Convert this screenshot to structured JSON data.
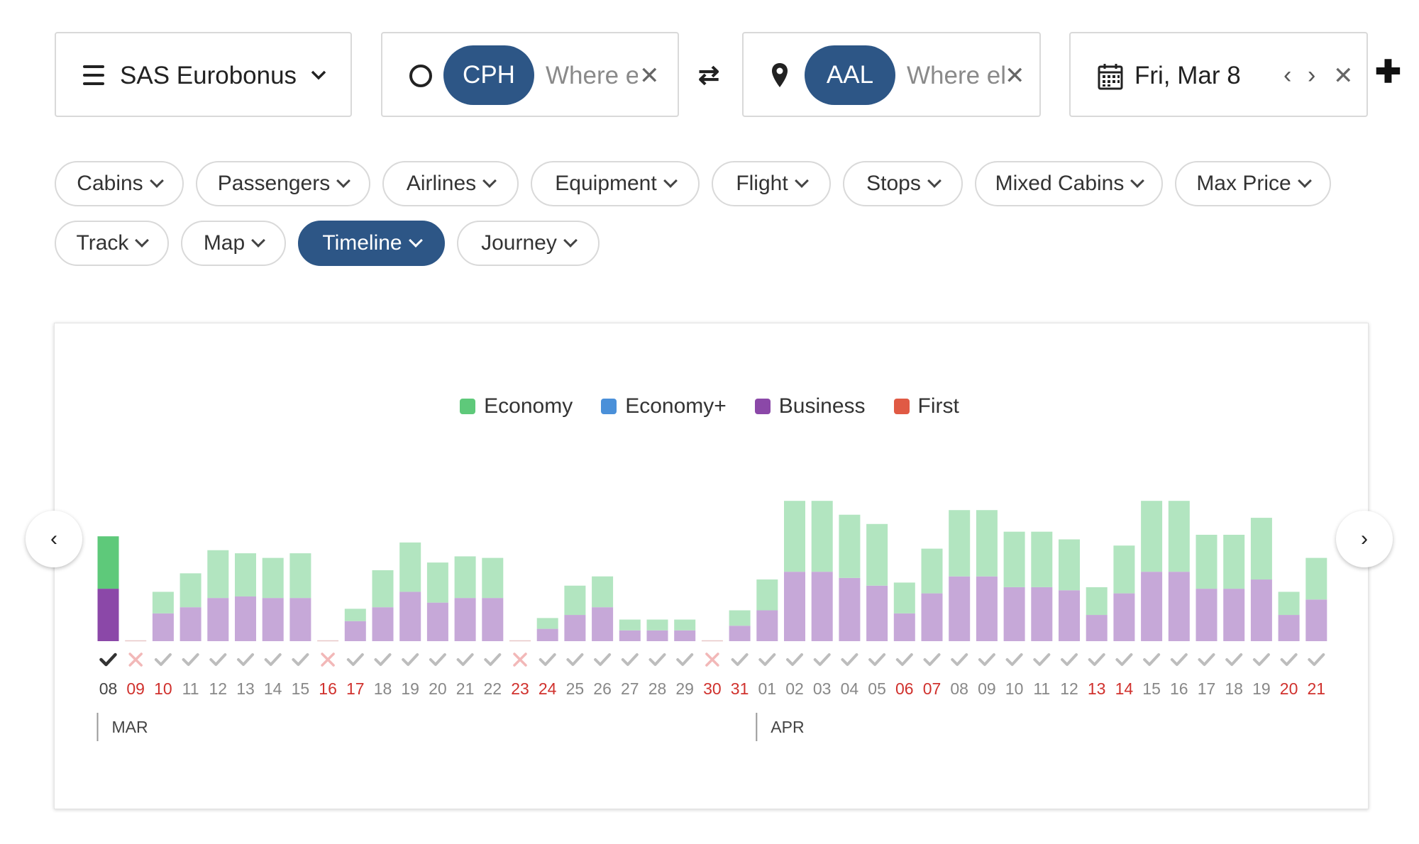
{
  "toolbar": {
    "program_label": "SAS Eurobonus",
    "origin": {
      "code": "CPH",
      "placeholder": "Where else?"
    },
    "destination": {
      "code": "AAL",
      "placeholder": "Where else?"
    },
    "date_label": "Fri, Mar 8"
  },
  "filters": [
    {
      "label": "Cabins",
      "active": false
    },
    {
      "label": "Passengers",
      "active": false
    },
    {
      "label": "Airlines",
      "active": false
    },
    {
      "label": "Equipment",
      "active": false
    },
    {
      "label": "Flight",
      "active": false
    },
    {
      "label": "Stops",
      "active": false
    },
    {
      "label": "Mixed Cabins",
      "active": false
    },
    {
      "label": "Max Price",
      "active": false
    },
    {
      "label": "Track",
      "active": false
    },
    {
      "label": "Map",
      "active": false
    },
    {
      "label": "Timeline",
      "active": true
    },
    {
      "label": "Journey",
      "active": false
    }
  ],
  "colors": {
    "accent": "#2d5686",
    "economy": "#5ec97a",
    "economy_light": "#b2e5c0",
    "economy_plus": "#4a90d9",
    "business": "#8b48a8",
    "business_light": "#c6a8d8",
    "first": "#e05a44",
    "weekend": "#d0312d",
    "unavailable": "#f2b8b8"
  },
  "chart_data": {
    "type": "bar",
    "stacked": true,
    "legend": [
      "Economy",
      "Economy+",
      "Business",
      "First"
    ],
    "legend_colors": [
      "#5ec97a",
      "#4a90d9",
      "#8b48a8",
      "#e05a44"
    ],
    "categories": [
      "08",
      "09",
      "10",
      "11",
      "12",
      "13",
      "14",
      "15",
      "16",
      "17",
      "18",
      "19",
      "20",
      "21",
      "22",
      "23",
      "24",
      "25",
      "26",
      "27",
      "28",
      "29",
      "30",
      "31",
      "01",
      "02",
      "03",
      "04",
      "05",
      "06",
      "07",
      "08",
      "09",
      "10",
      "11",
      "12",
      "13",
      "14",
      "15",
      "16",
      "17",
      "18",
      "19",
      "20",
      "21"
    ],
    "series": [
      {
        "name": "Business",
        "values": [
          17,
          0,
          9,
          11,
          14,
          14.5,
          14,
          14,
          0,
          6.5,
          11,
          16,
          12.5,
          14,
          14,
          0,
          4,
          8.5,
          11,
          3.5,
          3.5,
          3.5,
          0,
          5,
          10,
          22.5,
          22.5,
          20.5,
          18,
          9,
          15.5,
          21,
          21,
          17.5,
          17.5,
          16.5,
          8.5,
          15.5,
          22.5,
          22.5,
          17,
          17,
          20,
          8.5,
          13.5
        ]
      },
      {
        "name": "Economy",
        "values": [
          17,
          0,
          7,
          11,
          15.5,
          14,
          13,
          14.5,
          0,
          4,
          12,
          16,
          13,
          13.5,
          13,
          0,
          3.5,
          9.5,
          10,
          3.5,
          3.5,
          3.5,
          0,
          5,
          10,
          23,
          23,
          20.5,
          20,
          10,
          14.5,
          21.5,
          21.5,
          18,
          18,
          16.5,
          9,
          15.5,
          23,
          23,
          17.5,
          17.5,
          20,
          7.5,
          13.5
        ]
      }
    ],
    "status": [
      "selected",
      "unavailable",
      "available",
      "available",
      "available",
      "available",
      "available",
      "available",
      "unavailable",
      "available",
      "available",
      "available",
      "available",
      "available",
      "available",
      "unavailable",
      "available",
      "available",
      "available",
      "available",
      "available",
      "available",
      "unavailable",
      "available",
      "available",
      "available",
      "available",
      "available",
      "available",
      "available",
      "available",
      "available",
      "available",
      "available",
      "available",
      "available",
      "available",
      "available",
      "available",
      "available",
      "available",
      "available",
      "available",
      "available",
      "available"
    ],
    "weekend": [
      false,
      true,
      true,
      false,
      false,
      false,
      false,
      false,
      true,
      true,
      false,
      false,
      false,
      false,
      false,
      true,
      true,
      false,
      false,
      false,
      false,
      false,
      true,
      true,
      false,
      false,
      false,
      false,
      false,
      true,
      true,
      false,
      false,
      false,
      false,
      false,
      true,
      true,
      false,
      false,
      false,
      false,
      false,
      true,
      true
    ],
    "months": [
      {
        "label": "MAR",
        "start_index": 0
      },
      {
        "label": "APR",
        "start_index": 24
      }
    ],
    "selected_index": 0,
    "ylim": [
      0,
      46
    ]
  }
}
